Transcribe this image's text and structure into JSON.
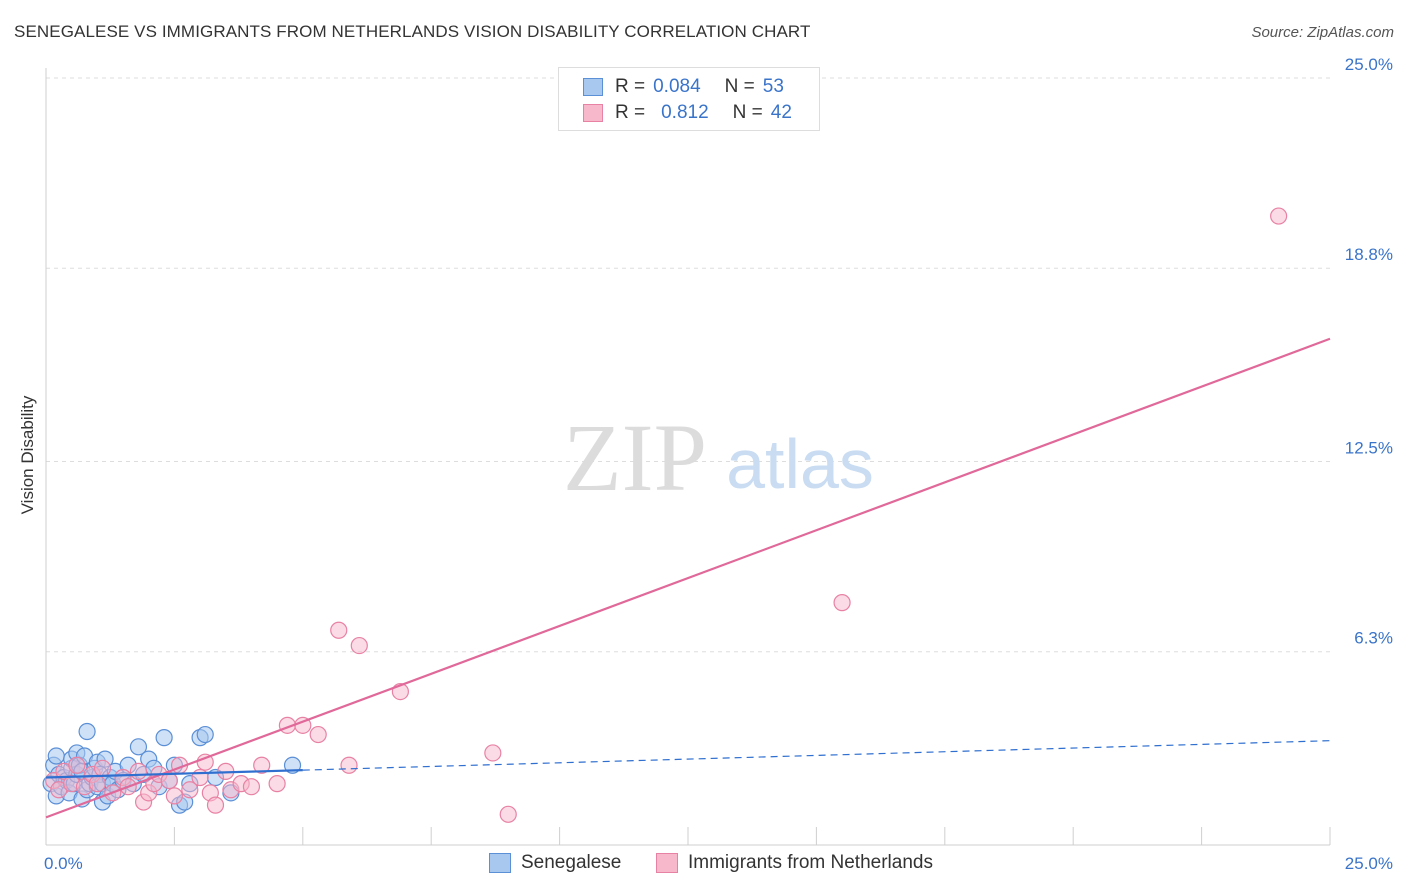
{
  "title": "SENEGALESE VS IMMIGRANTS FROM NETHERLANDS VISION DISABILITY CORRELATION CHART",
  "source": "Source: ZipAtlas.com",
  "watermark": {
    "zip": "ZIP",
    "atlas": "atlas"
  },
  "legend_top": {
    "rows": [
      {
        "r_label": "R =",
        "r_value": "0.084",
        "n_label": "N =",
        "n_value": "53"
      },
      {
        "r_label": "R =",
        "r_value": "0.812",
        "n_label": "N =",
        "n_value": "42"
      }
    ]
  },
  "legend_bottom": {
    "series_a": "Senegalese",
    "series_b": "Immigrants from Netherlands"
  },
  "colors": {
    "blue_fill": "#a8c8f0",
    "blue_stroke": "#5b8fd6",
    "blue_line": "#2f6fcf",
    "pink_fill": "#f8b8cc",
    "pink_stroke": "#e882a4",
    "pink_line": "#e0699a",
    "tick_text": "#3a74c9",
    "grid": "#dddddd"
  },
  "chart_data": {
    "type": "scatter",
    "title": "SENEGALESE VS IMMIGRANTS FROM NETHERLANDS VISION DISABILITY CORRELATION CHART",
    "xlabel": "",
    "ylabel": "Vision Disability",
    "xlim": [
      0,
      25
    ],
    "ylim": [
      0,
      25
    ],
    "x_tick_labels": [
      "0.0%",
      "25.0%"
    ],
    "y_ticks": [
      6.3,
      12.5,
      18.8,
      25.0
    ],
    "y_tick_labels": [
      "6.3%",
      "12.5%",
      "18.8%",
      "25.0%"
    ],
    "series": [
      {
        "name": "Senegalese",
        "r": 0.084,
        "n": 53,
        "trend": {
          "x0": 0,
          "y0": 2.2,
          "x1": 25,
          "y1": 3.4,
          "solid_until": 5
        },
        "points": [
          [
            0.1,
            2.0
          ],
          [
            0.15,
            2.6
          ],
          [
            0.2,
            1.6
          ],
          [
            0.2,
            2.9
          ],
          [
            0.25,
            2.3
          ],
          [
            0.3,
            1.9
          ],
          [
            0.35,
            2.2
          ],
          [
            0.4,
            2.1
          ],
          [
            0.45,
            1.7
          ],
          [
            0.5,
            2.5
          ],
          [
            0.5,
            2.8
          ],
          [
            0.55,
            2.0
          ],
          [
            0.6,
            2.3
          ],
          [
            0.6,
            3.0
          ],
          [
            0.65,
            2.6
          ],
          [
            0.7,
            1.5
          ],
          [
            0.7,
            2.4
          ],
          [
            0.75,
            2.9
          ],
          [
            0.8,
            1.8
          ],
          [
            0.8,
            3.7
          ],
          [
            0.85,
            2.0
          ],
          [
            0.9,
            2.2
          ],
          [
            0.95,
            2.5
          ],
          [
            1.0,
            1.9
          ],
          [
            1.0,
            2.7
          ],
          [
            1.05,
            2.3
          ],
          [
            1.1,
            1.4
          ],
          [
            1.1,
            2.0
          ],
          [
            1.15,
            2.8
          ],
          [
            1.2,
            1.6
          ],
          [
            1.25,
            2.2
          ],
          [
            1.3,
            2.0
          ],
          [
            1.35,
            2.4
          ],
          [
            1.4,
            1.8
          ],
          [
            1.5,
            2.1
          ],
          [
            1.6,
            2.6
          ],
          [
            1.7,
            2.0
          ],
          [
            1.8,
            3.2
          ],
          [
            1.9,
            2.3
          ],
          [
            2.0,
            2.8
          ],
          [
            2.1,
            2.5
          ],
          [
            2.2,
            1.9
          ],
          [
            2.3,
            3.5
          ],
          [
            2.4,
            2.1
          ],
          [
            2.5,
            2.6
          ],
          [
            2.6,
            1.3
          ],
          [
            2.7,
            1.4
          ],
          [
            2.8,
            2.0
          ],
          [
            3.0,
            3.5
          ],
          [
            3.1,
            3.6
          ],
          [
            3.3,
            2.2
          ],
          [
            3.6,
            1.7
          ],
          [
            4.8,
            2.6
          ]
        ]
      },
      {
        "name": "Immigrants from Netherlands",
        "r": 0.812,
        "n": 42,
        "trend": {
          "x0": 0,
          "y0": 0.9,
          "x1": 25,
          "y1": 16.5
        },
        "points": [
          [
            0.15,
            2.1
          ],
          [
            0.25,
            1.8
          ],
          [
            0.35,
            2.4
          ],
          [
            0.5,
            2.0
          ],
          [
            0.6,
            2.6
          ],
          [
            0.75,
            1.9
          ],
          [
            0.9,
            2.3
          ],
          [
            1.0,
            2.0
          ],
          [
            1.1,
            2.5
          ],
          [
            1.3,
            1.7
          ],
          [
            1.5,
            2.2
          ],
          [
            1.6,
            1.9
          ],
          [
            1.8,
            2.4
          ],
          [
            1.9,
            1.4
          ],
          [
            2.0,
            1.7
          ],
          [
            2.1,
            2.0
          ],
          [
            2.2,
            2.3
          ],
          [
            2.4,
            2.1
          ],
          [
            2.5,
            1.6
          ],
          [
            2.6,
            2.6
          ],
          [
            2.8,
            1.8
          ],
          [
            3.0,
            2.2
          ],
          [
            3.1,
            2.7
          ],
          [
            3.2,
            1.7
          ],
          [
            3.3,
            1.3
          ],
          [
            3.5,
            2.4
          ],
          [
            3.6,
            1.8
          ],
          [
            3.8,
            2.0
          ],
          [
            4.0,
            1.9
          ],
          [
            4.2,
            2.6
          ],
          [
            4.5,
            2.0
          ],
          [
            4.7,
            3.9
          ],
          [
            5.0,
            3.9
          ],
          [
            5.3,
            3.6
          ],
          [
            5.7,
            7.0
          ],
          [
            5.9,
            2.6
          ],
          [
            6.1,
            6.5
          ],
          [
            6.9,
            5.0
          ],
          [
            8.7,
            3.0
          ],
          [
            9.0,
            1.0
          ],
          [
            15.5,
            7.9
          ],
          [
            24.0,
            20.5
          ]
        ]
      }
    ]
  }
}
